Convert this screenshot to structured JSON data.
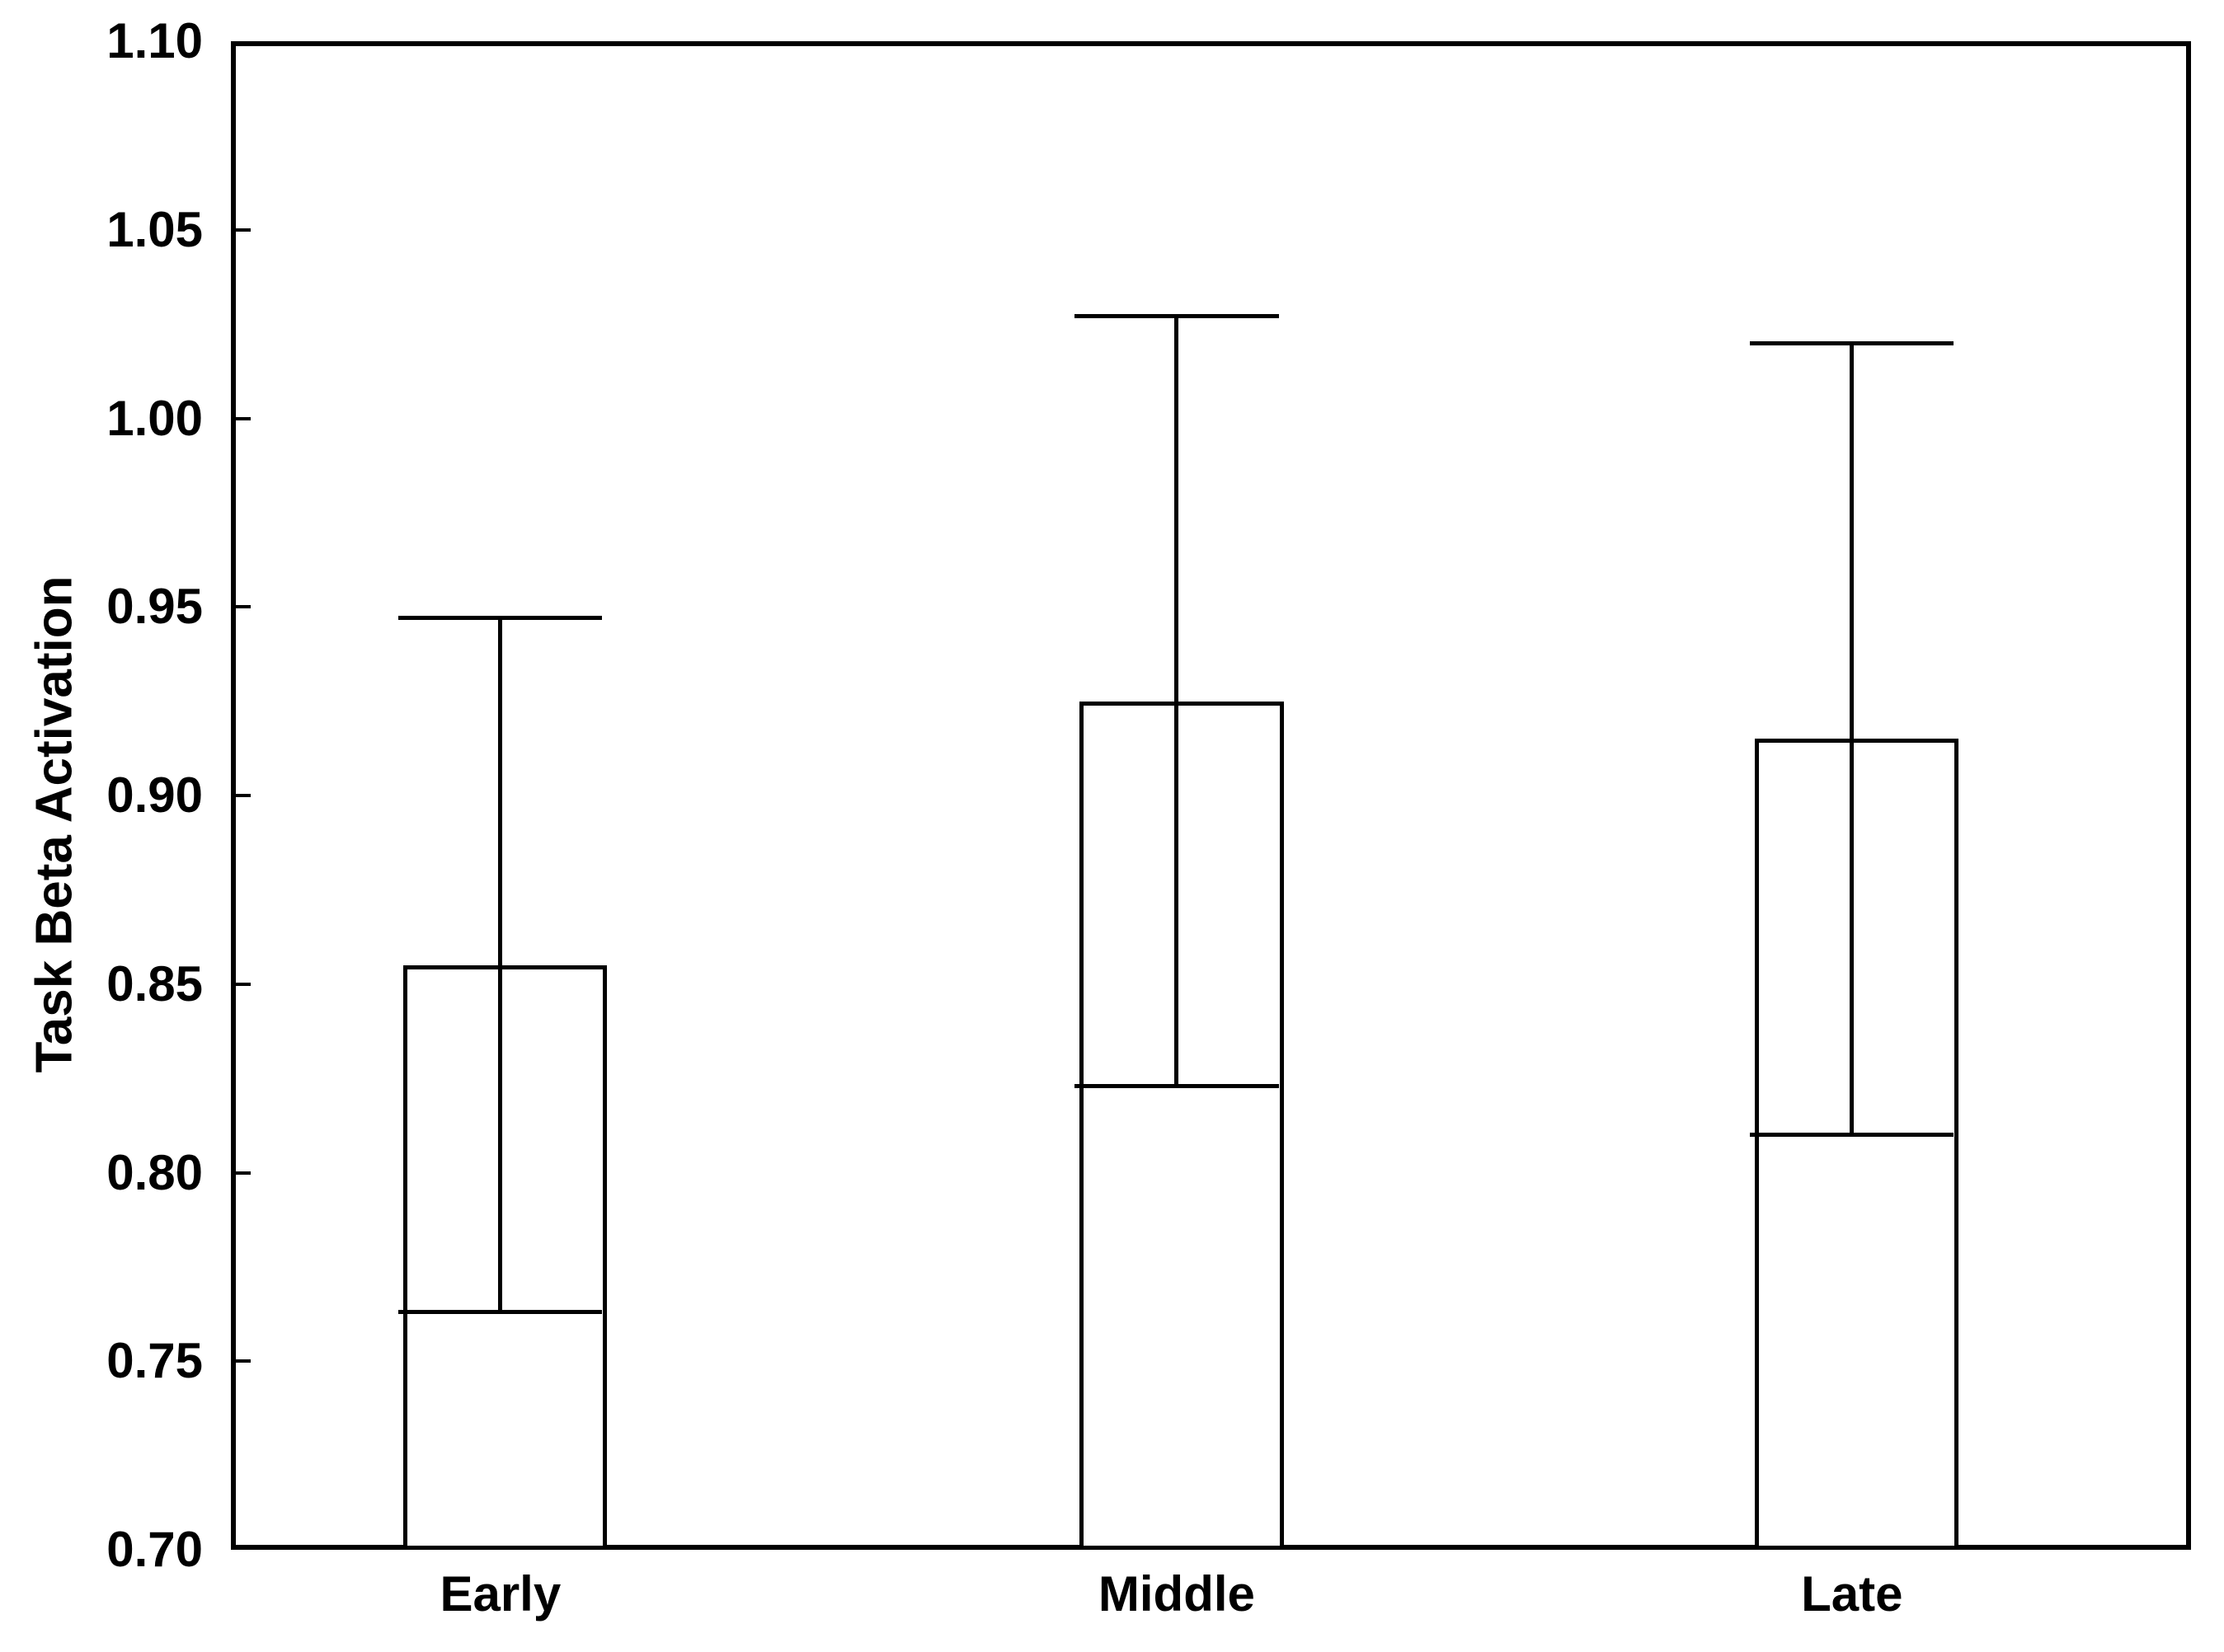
{
  "chart_data": {
    "type": "bar",
    "title": "",
    "xlabel": "",
    "ylabel": "Task Beta Activation",
    "ylim": [
      0.7,
      1.1
    ],
    "yticks": [
      1.1,
      1.05,
      1.0,
      0.95,
      0.9,
      0.85,
      0.8,
      0.75,
      0.7
    ],
    "ytick_labels": [
      "1.10",
      "1.05",
      "1.00",
      "0.95",
      "0.90",
      "0.85",
      "0.80",
      "0.75",
      "0.70"
    ],
    "categories": [
      "Early",
      "Middle",
      "Late"
    ],
    "series": [
      {
        "name": "Task Beta Activation",
        "values": [
          0.855,
          0.925,
          0.915
        ],
        "errors": [
          0.092,
          0.102,
          0.105
        ],
        "error_upper_caps": [
          0.947,
          1.027,
          1.02
        ],
        "error_lower_caps": [
          0.763,
          0.823,
          0.81
        ]
      }
    ],
    "grid": false,
    "legend": false,
    "bar_fill": "#ffffff",
    "line_color": "#000000",
    "bar_centers_frac": [
      0.1375,
      0.4825,
      0.827
    ],
    "bar_width_frac": 0.104,
    "error_cap_width": "bar-width",
    "lower_error_cap_drawn_inside_bar": true,
    "tick_direction": "in"
  }
}
